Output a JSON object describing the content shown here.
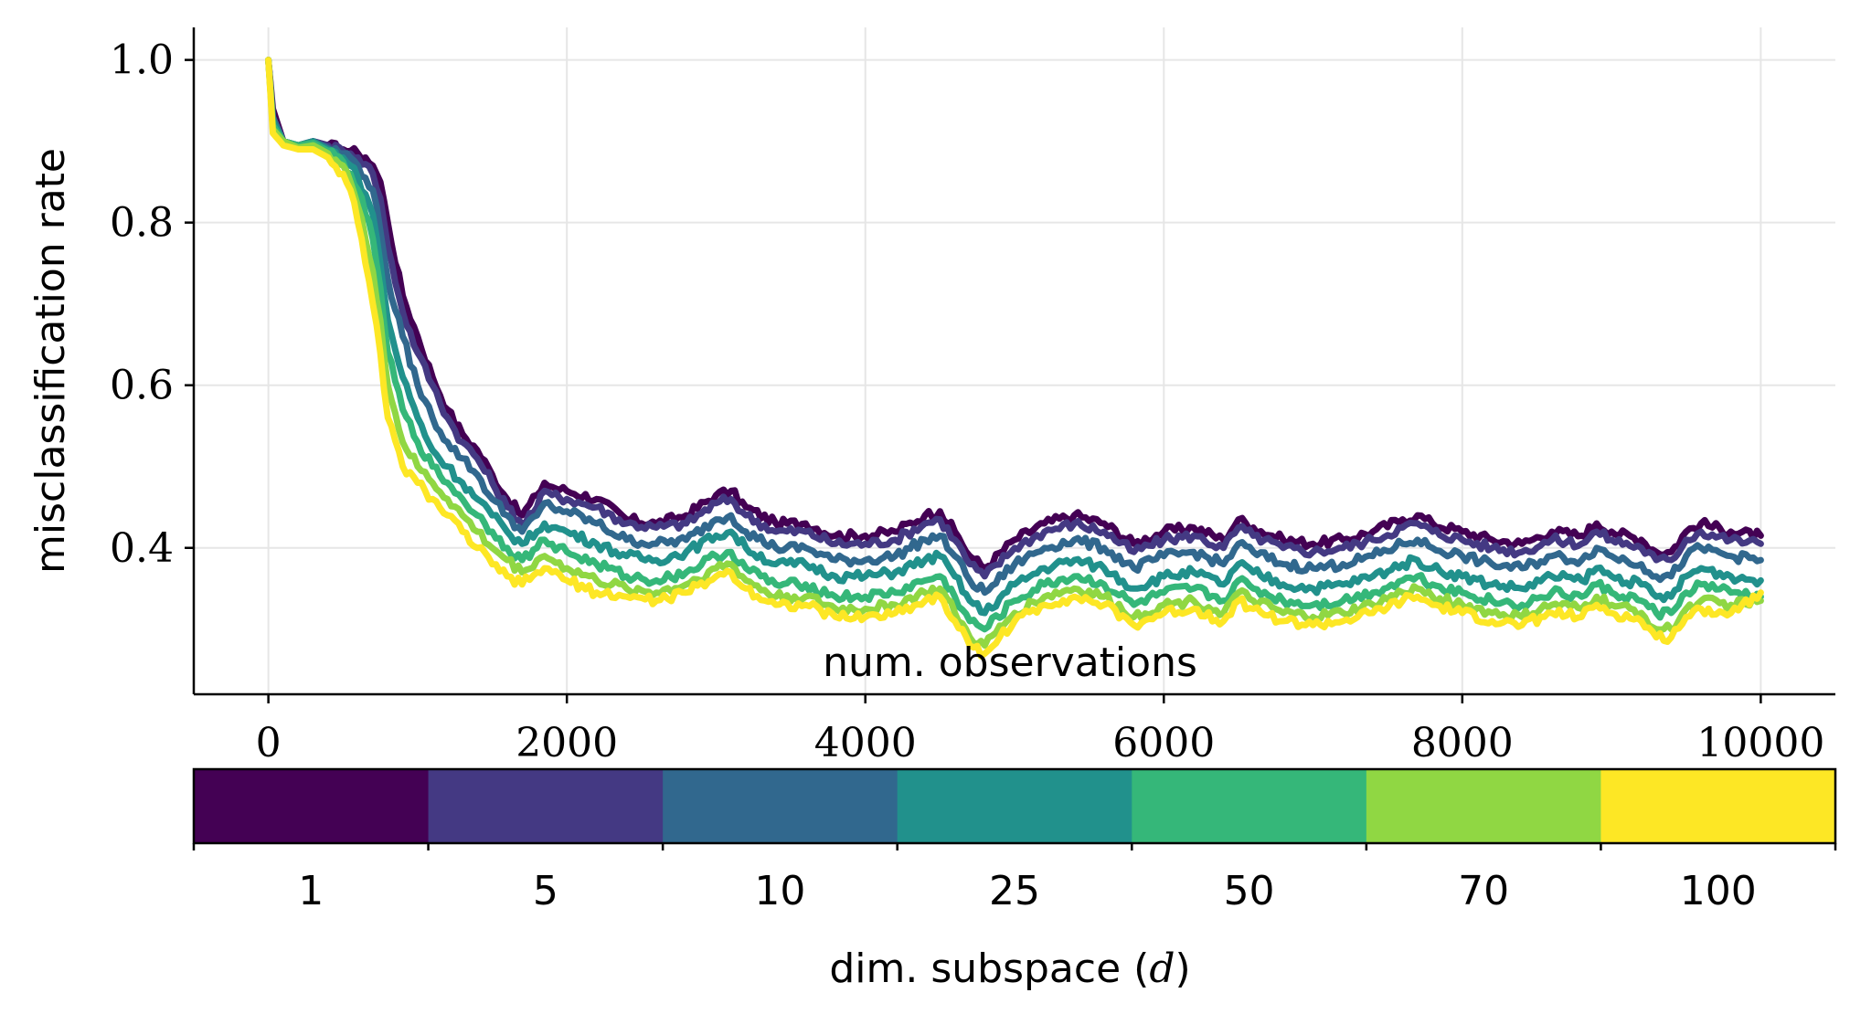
{
  "chart_data": {
    "type": "line",
    "title": "",
    "xlabel": "num. observations",
    "ylabel": "misclassification rate",
    "xlim": [
      -500,
      10500
    ],
    "ylim": [
      0.22,
      1.04
    ],
    "xticks": [
      0,
      2000,
      4000,
      6000,
      8000,
      10000
    ],
    "xtick_labels": [
      "0",
      "2000",
      "4000",
      "6000",
      "8000",
      "10000"
    ],
    "yticks": [
      0.4,
      0.6,
      0.8,
      1.0
    ],
    "ytick_labels": [
      "0.4",
      "0.6",
      "0.8",
      "1.0"
    ],
    "grid": true,
    "legend": "colorbar-bottom",
    "colorbar": {
      "label": "dim. subspace (d)",
      "label_prefix": "dim. subspace (",
      "label_var": "d",
      "label_suffix": ")",
      "entries": [
        {
          "label": "1",
          "color": "#440154"
        },
        {
          "label": "5",
          "color": "#443983"
        },
        {
          "label": "10",
          "color": "#31688e"
        },
        {
          "label": "25",
          "color": "#21918c"
        },
        {
          "label": "50",
          "color": "#35b779"
        },
        {
          "label": "70",
          "color": "#90d743"
        },
        {
          "label": "100",
          "color": "#fde725"
        }
      ]
    },
    "x": [
      0,
      30,
      100,
      200,
      300,
      400,
      500,
      550,
      600,
      650,
      700,
      750,
      800,
      900,
      1000,
      1100,
      1200,
      1300,
      1400,
      1500,
      1600,
      1700,
      1800,
      1850,
      1900,
      2000,
      2200,
      2400,
      2600,
      2800,
      3000,
      3100,
      3200,
      3400,
      3600,
      3800,
      4000,
      4200,
      4400,
      4500,
      4600,
      4700,
      4800,
      5000,
      5200,
      5400,
      5600,
      5800,
      6000,
      6200,
      6400,
      6500,
      6600,
      6800,
      7000,
      7200,
      7400,
      7600,
      7700,
      7800,
      8000,
      8200,
      8400,
      8600,
      8800,
      8900,
      9000,
      9200,
      9300,
      9400,
      9500,
      9600,
      9800,
      10000
    ],
    "series": [
      {
        "label": "1",
        "values": [
          1.0,
          0.94,
          0.9,
          0.895,
          0.9,
          0.895,
          0.89,
          0.888,
          0.885,
          0.88,
          0.87,
          0.85,
          0.8,
          0.71,
          0.66,
          0.61,
          0.57,
          0.54,
          0.52,
          0.49,
          0.46,
          0.44,
          0.465,
          0.48,
          0.475,
          0.47,
          0.46,
          0.435,
          0.43,
          0.44,
          0.465,
          0.47,
          0.45,
          0.43,
          0.43,
          0.415,
          0.415,
          0.42,
          0.44,
          0.445,
          0.42,
          0.39,
          0.375,
          0.41,
          0.43,
          0.44,
          0.43,
          0.405,
          0.42,
          0.425,
          0.41,
          0.435,
          0.425,
          0.41,
          0.405,
          0.41,
          0.42,
          0.435,
          0.44,
          0.43,
          0.42,
          0.41,
          0.405,
          0.42,
          0.415,
          0.43,
          0.42,
          0.41,
          0.395,
          0.395,
          0.42,
          0.43,
          0.42,
          0.415
        ]
      },
      {
        "label": "5",
        "values": [
          1.0,
          0.93,
          0.9,
          0.895,
          0.9,
          0.895,
          0.888,
          0.885,
          0.88,
          0.872,
          0.86,
          0.83,
          0.77,
          0.69,
          0.64,
          0.6,
          0.56,
          0.53,
          0.51,
          0.48,
          0.45,
          0.43,
          0.45,
          0.47,
          0.465,
          0.46,
          0.45,
          0.43,
          0.425,
          0.43,
          0.455,
          0.46,
          0.44,
          0.42,
          0.42,
          0.405,
          0.405,
          0.41,
          0.43,
          0.435,
          0.41,
          0.38,
          0.365,
          0.4,
          0.42,
          0.43,
          0.42,
          0.395,
          0.41,
          0.415,
          0.4,
          0.425,
          0.415,
          0.4,
          0.395,
          0.4,
          0.41,
          0.425,
          0.43,
          0.42,
          0.41,
          0.4,
          0.395,
          0.41,
          0.405,
          0.42,
          0.41,
          0.4,
          0.385,
          0.385,
          0.41,
          0.42,
          0.41,
          0.405
        ]
      },
      {
        "label": "10",
        "values": [
          1.0,
          0.93,
          0.9,
          0.895,
          0.9,
          0.892,
          0.885,
          0.88,
          0.87,
          0.855,
          0.84,
          0.79,
          0.73,
          0.66,
          0.6,
          0.56,
          0.53,
          0.51,
          0.49,
          0.46,
          0.44,
          0.42,
          0.44,
          0.455,
          0.45,
          0.445,
          0.43,
          0.41,
          0.405,
          0.41,
          0.435,
          0.44,
          0.42,
          0.4,
          0.4,
          0.385,
          0.385,
          0.39,
          0.41,
          0.415,
          0.39,
          0.36,
          0.345,
          0.38,
          0.4,
          0.41,
          0.4,
          0.375,
          0.39,
          0.395,
          0.38,
          0.405,
          0.395,
          0.38,
          0.375,
          0.38,
          0.39,
          0.405,
          0.41,
          0.4,
          0.39,
          0.38,
          0.375,
          0.39,
          0.385,
          0.4,
          0.39,
          0.38,
          0.365,
          0.365,
          0.39,
          0.4,
          0.39,
          0.385
        ]
      },
      {
        "label": "25",
        "values": [
          1.0,
          0.925,
          0.9,
          0.895,
          0.9,
          0.89,
          0.88,
          0.87,
          0.855,
          0.835,
          0.81,
          0.75,
          0.68,
          0.61,
          0.56,
          0.52,
          0.5,
          0.48,
          0.46,
          0.44,
          0.42,
          0.405,
          0.42,
          0.43,
          0.425,
          0.42,
          0.405,
          0.39,
          0.385,
          0.395,
          0.415,
          0.42,
          0.4,
          0.38,
          0.38,
          0.365,
          0.365,
          0.37,
          0.385,
          0.39,
          0.365,
          0.335,
          0.32,
          0.355,
          0.375,
          0.385,
          0.375,
          0.35,
          0.365,
          0.37,
          0.355,
          0.38,
          0.37,
          0.355,
          0.35,
          0.355,
          0.365,
          0.38,
          0.385,
          0.375,
          0.365,
          0.355,
          0.35,
          0.365,
          0.36,
          0.375,
          0.365,
          0.355,
          0.34,
          0.34,
          0.365,
          0.375,
          0.365,
          0.36
        ]
      },
      {
        "label": "50",
        "values": [
          1.0,
          0.92,
          0.9,
          0.895,
          0.898,
          0.888,
          0.875,
          0.86,
          0.84,
          0.81,
          0.78,
          0.72,
          0.64,
          0.57,
          0.53,
          0.5,
          0.48,
          0.46,
          0.44,
          0.42,
          0.4,
          0.385,
          0.4,
          0.41,
          0.405,
          0.395,
          0.38,
          0.365,
          0.36,
          0.37,
          0.39,
          0.395,
          0.375,
          0.355,
          0.355,
          0.34,
          0.34,
          0.345,
          0.36,
          0.365,
          0.34,
          0.31,
          0.3,
          0.335,
          0.355,
          0.365,
          0.355,
          0.33,
          0.345,
          0.35,
          0.335,
          0.36,
          0.35,
          0.335,
          0.33,
          0.335,
          0.345,
          0.36,
          0.365,
          0.355,
          0.345,
          0.335,
          0.33,
          0.345,
          0.34,
          0.355,
          0.345,
          0.335,
          0.32,
          0.32,
          0.345,
          0.355,
          0.345,
          0.34
        ]
      },
      {
        "label": "70",
        "values": [
          1.0,
          0.915,
          0.9,
          0.892,
          0.895,
          0.885,
          0.87,
          0.85,
          0.82,
          0.78,
          0.74,
          0.68,
          0.6,
          0.53,
          0.5,
          0.48,
          0.46,
          0.44,
          0.42,
          0.4,
          0.385,
          0.37,
          0.385,
          0.39,
          0.385,
          0.375,
          0.36,
          0.35,
          0.345,
          0.355,
          0.375,
          0.38,
          0.36,
          0.34,
          0.34,
          0.325,
          0.325,
          0.33,
          0.345,
          0.35,
          0.32,
          0.29,
          0.28,
          0.32,
          0.34,
          0.35,
          0.34,
          0.315,
          0.33,
          0.335,
          0.32,
          0.345,
          0.335,
          0.32,
          0.315,
          0.32,
          0.33,
          0.345,
          0.35,
          0.34,
          0.33,
          0.32,
          0.315,
          0.33,
          0.325,
          0.34,
          0.33,
          0.32,
          0.3,
          0.3,
          0.325,
          0.335,
          0.33,
          0.335
        ]
      },
      {
        "label": "100",
        "values": [
          1.0,
          0.91,
          0.895,
          0.89,
          0.89,
          0.88,
          0.86,
          0.84,
          0.8,
          0.75,
          0.7,
          0.64,
          0.56,
          0.5,
          0.48,
          0.46,
          0.44,
          0.42,
          0.4,
          0.38,
          0.365,
          0.355,
          0.37,
          0.375,
          0.37,
          0.36,
          0.345,
          0.34,
          0.335,
          0.345,
          0.365,
          0.37,
          0.35,
          0.33,
          0.33,
          0.315,
          0.315,
          0.32,
          0.335,
          0.34,
          0.31,
          0.28,
          0.27,
          0.31,
          0.33,
          0.34,
          0.33,
          0.305,
          0.32,
          0.325,
          0.31,
          0.335,
          0.325,
          0.31,
          0.305,
          0.31,
          0.32,
          0.335,
          0.34,
          0.33,
          0.32,
          0.31,
          0.305,
          0.32,
          0.315,
          0.33,
          0.32,
          0.31,
          0.29,
          0.29,
          0.315,
          0.325,
          0.32,
          0.345
        ]
      }
    ]
  }
}
